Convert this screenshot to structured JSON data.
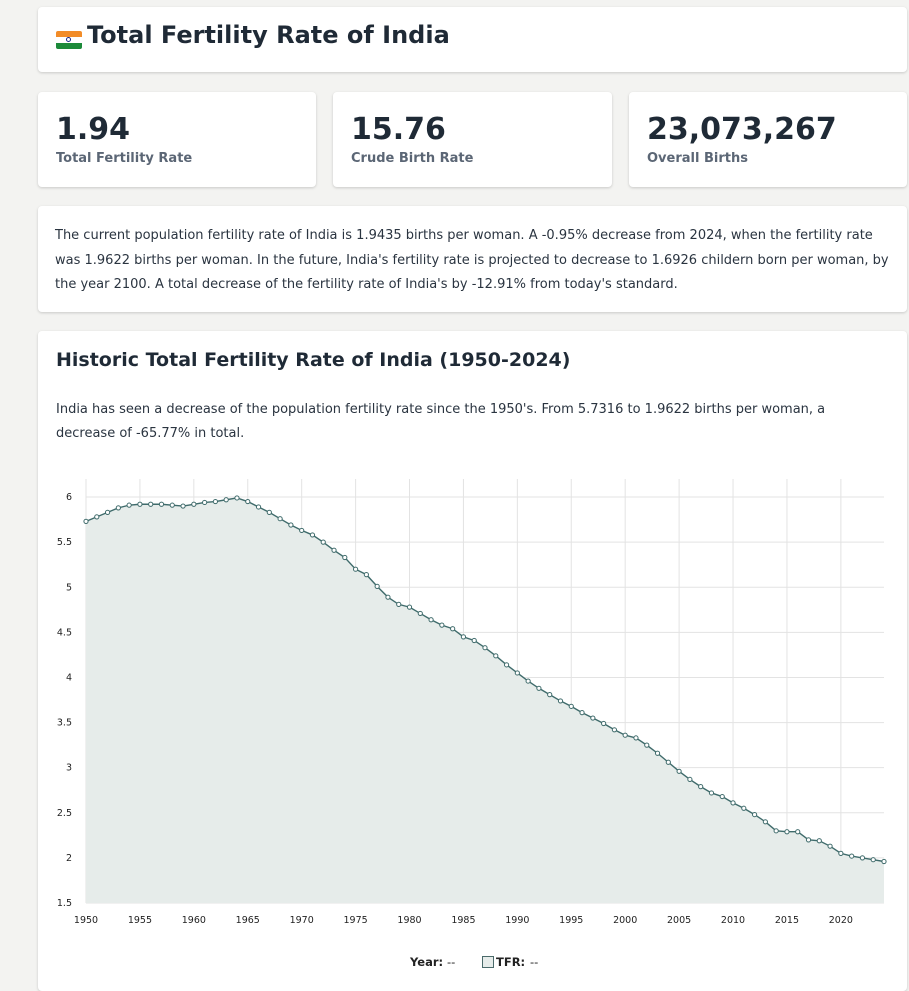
{
  "header": {
    "title": "Total Fertility Rate of India"
  },
  "stats": [
    {
      "value": "1.94",
      "label": "Total Fertility Rate"
    },
    {
      "value": "15.76",
      "label": "Crude Birth Rate"
    },
    {
      "value": "23,073,267",
      "label": "Overall Births"
    }
  ],
  "summary": {
    "text": "The current population fertility rate of India is 1.9435 births per woman. A -0.95% decrease from 2024, when the fertility rate was 1.9622 births per woman. In the future, India's fertility rate is projected to decrease to 1.6926 childern born per woman, by the year 2100. A total decrease of the fertility rate of India's by -12.91% from today's standard."
  },
  "chart_section": {
    "title": "Historic Total Fertility Rate of India (1950-2024)",
    "description": "India has seen a decrease of the population fertility rate since the 1950's. From 5.7316 to 1.9622 births per woman, a decrease of -65.77% in total."
  },
  "legend": {
    "year_label": "Year:",
    "year_value": "--",
    "tfr_label": "TFR:",
    "tfr_value": "--"
  },
  "colors": {
    "line": "#3f6b6b",
    "fill": "#e6ecea",
    "grid": "#e3e3e3"
  },
  "chart_data": {
    "type": "area",
    "x": [
      1950,
      1951,
      1952,
      1953,
      1954,
      1955,
      1956,
      1957,
      1958,
      1959,
      1960,
      1961,
      1962,
      1963,
      1964,
      1965,
      1966,
      1967,
      1968,
      1969,
      1970,
      1971,
      1972,
      1973,
      1974,
      1975,
      1976,
      1977,
      1978,
      1979,
      1980,
      1981,
      1982,
      1983,
      1984,
      1985,
      1986,
      1987,
      1988,
      1989,
      1990,
      1991,
      1992,
      1993,
      1994,
      1995,
      1996,
      1997,
      1998,
      1999,
      2000,
      2001,
      2002,
      2003,
      2004,
      2005,
      2006,
      2007,
      2008,
      2009,
      2010,
      2011,
      2012,
      2013,
      2014,
      2015,
      2016,
      2017,
      2018,
      2019,
      2020,
      2021,
      2022,
      2023,
      2024
    ],
    "series": [
      {
        "values": [
          5.73,
          5.78,
          5.83,
          5.88,
          5.91,
          5.92,
          5.92,
          5.92,
          5.91,
          5.9,
          5.92,
          5.94,
          5.95,
          5.97,
          5.99,
          5.95,
          5.89,
          5.83,
          5.76,
          5.69,
          5.63,
          5.58,
          5.5,
          5.41,
          5.33,
          5.2,
          5.14,
          5.01,
          4.89,
          4.81,
          4.78,
          4.71,
          4.64,
          4.58,
          4.54,
          4.45,
          4.41,
          4.33,
          4.24,
          4.14,
          4.05,
          3.96,
          3.88,
          3.81,
          3.74,
          3.68,
          3.61,
          3.55,
          3.49,
          3.42,
          3.36,
          3.33,
          3.25,
          3.16,
          3.06,
          2.96,
          2.87,
          2.79,
          2.72,
          2.68,
          2.61,
          2.55,
          2.48,
          2.4,
          2.3,
          2.29,
          2.29,
          2.2,
          2.19,
          2.13,
          2.05,
          2.02,
          2.0,
          1.98,
          1.96
        ]
      }
    ],
    "xticks": [
      1950,
      1955,
      1960,
      1965,
      1970,
      1975,
      1980,
      1985,
      1990,
      1995,
      2000,
      2005,
      2010,
      2015,
      2020
    ],
    "yticks": [
      1.5,
      2,
      2.5,
      3,
      3.5,
      4,
      4.5,
      5,
      5.5,
      6
    ],
    "ytick_labels": [
      "1.5",
      "2",
      "2.5",
      "3",
      "3.5",
      "4",
      "4.5",
      "5",
      "5.5",
      "6"
    ],
    "xlim": [
      1950,
      2024
    ],
    "ylim": [
      1.5,
      6.2
    ],
    "grid": true
  }
}
